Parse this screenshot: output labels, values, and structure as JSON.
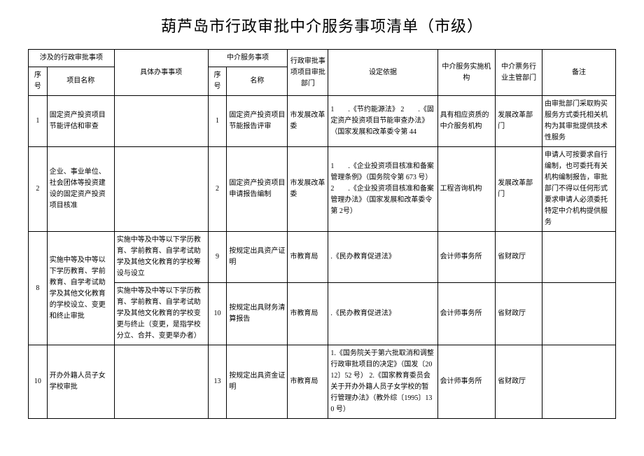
{
  "title": "葫芦岛市行政审批中介服务事项清单（市级）",
  "headers": {
    "group1": "涉及的行政审批事项",
    "detail": "具体办事事项",
    "group2": "中介服务事项",
    "dept": "行政审批事项项目审批部门",
    "basis": "设定依据",
    "org": "中介服务实施机构",
    "auth": "中介票务行业主管部门",
    "note": "备注",
    "seq": "序号",
    "name1": "项目名称",
    "name2": "名称"
  },
  "rows": [
    {
      "seq1": "1",
      "name1": "固定资产投资项目节能评估和审查",
      "detail": "",
      "seq2": "1",
      "name2": "固定资产投资项目节能报告评审",
      "dept": "市发展改革委",
      "basis": "1　　.《节约能源法》\n2　　.《固定资产投资项目节能审查办法》（国家发展和改革委令第 44",
      "org": "具有相应资质的中介服务机构",
      "auth": "发展改革部门",
      "note": "由审批部门采取购买服务方式委托相关机构为其审批提供技术性服务"
    },
    {
      "seq1": "2",
      "name1": "企业、事业单位、社会团体等投资建设的固定资产投资项目核准",
      "detail": "",
      "seq2": "2",
      "name2": "固定资产投资项目申请报告编制",
      "dept": "市发展改革委",
      "basis": "1　　.《企业投资项目核准和备案管理条例》（国务院令第 673 号）\n2　　.《企业投资项目核准和备案管理办法》（国家发展和改革委令第 2号）",
      "org": "工程咨询机构",
      "auth": "发展改革部门",
      "note": "申请人可按要求自行编制，也可委托有关机构编制报告，审批部门不得以任何形式要求申请人必须委托特定中介机构提供服务"
    },
    {
      "seq1": "8",
      "name1": "实施中等及中等以下学历教育、学前教育、自学考试助学及其他文化教育的学校设立、变更和终止审批",
      "detail": "实施中等及中等以下学历教育、学前教育、自学考试助学及其他文化教育的学校筹设与设立",
      "seq2": "9",
      "name2": "按规定出具资产证明",
      "dept": "市教育局",
      "basis": ".《民办教育促进法》",
      "org": "会计师事务所",
      "auth": "省财政厅",
      "note": ""
    },
    {
      "seq1": "",
      "name1": "",
      "detail": "实施中等及中等以下学历教育、学前教育、自学考试助学及其他文化教育的学校变更与终止（变更，是指学校分立、合并、变更举办者）",
      "seq2": "10",
      "name2": "按规定出具财务清算报告",
      "dept": "市教育局",
      "basis": ".《民办教育促进法》",
      "org": "会计师事务所",
      "auth": "省财政厅",
      "note": ""
    },
    {
      "seq1": "10",
      "name1": "开办外籍人员子女学校审批",
      "detail": "",
      "seq2": "13",
      "name2": "按规定出具资金证明",
      "dept": "市教育局",
      "basis": "1.《国务院关于第六批取消和调整行政审批项目的决定》（国发〔2012〕52 号）\n2.《国家教育委员会关于开办外籍人员子女学校的暂行管理办法》（教外综〔1995〕130 号）",
      "org": "会计师事务所",
      "auth": "省财政厅",
      "note": ""
    }
  ]
}
